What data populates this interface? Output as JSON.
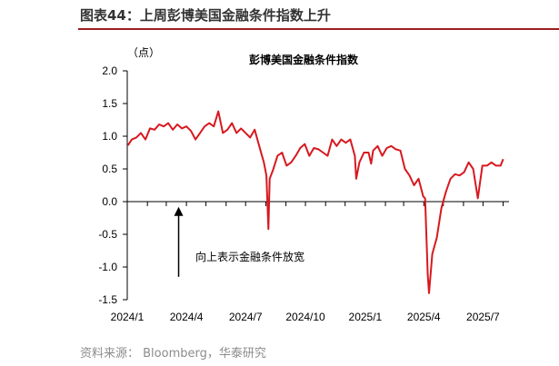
{
  "figure_label": "图表44：",
  "figure_title": "上周彭博美国金融条件指数上升",
  "source_note": "资料来源： Bloomberg，华泰研究",
  "colors": {
    "series": "#d7191f",
    "axis": "#000000",
    "title_rule": "#9b1c1f",
    "note": "#8c8c8c"
  },
  "chart_data": {
    "type": "line",
    "title": "彭博美国金融条件指数",
    "unit_label": "（点）",
    "ylim": [
      -1.5,
      2.0
    ],
    "yticks": [
      2.0,
      1.5,
      1.0,
      0.5,
      0.0,
      -0.5,
      -1.0,
      -1.5
    ],
    "ytick_labels": [
      "2.0",
      "1.5",
      "1.0",
      "0.5",
      "0.0",
      "-0.5",
      "-1.0",
      "-1.5"
    ],
    "xlim": [
      "2024-01-01",
      "2025-08-10"
    ],
    "xticks": [
      "2024-01-01",
      "2024-04-01",
      "2024-07-01",
      "2024-10-01",
      "2025-01-01",
      "2025-04-01",
      "2025-07-01"
    ],
    "xtick_labels": [
      "2024/1",
      "2024/4",
      "2024/7",
      "2024/10",
      "2025/1",
      "2025/4",
      "2025/7"
    ],
    "grid": false,
    "annotation": {
      "text": "向上表示金融条件放宽",
      "arrow": "up",
      "arrow_x": "2024-03-20",
      "arrow_y_from": -1.15,
      "arrow_y_to": -0.08
    },
    "series": [
      {
        "x": [
          "2024-01-02",
          "2024-01-08",
          "2024-01-15",
          "2024-01-22",
          "2024-01-29",
          "2024-02-05",
          "2024-02-12",
          "2024-02-19",
          "2024-02-26",
          "2024-03-04",
          "2024-03-11",
          "2024-03-18",
          "2024-03-25",
          "2024-04-01",
          "2024-04-08",
          "2024-04-15",
          "2024-04-22",
          "2024-04-29",
          "2024-05-06",
          "2024-05-13",
          "2024-05-20",
          "2024-05-27",
          "2024-06-03",
          "2024-06-10",
          "2024-06-17",
          "2024-06-24",
          "2024-07-01",
          "2024-07-08",
          "2024-07-15",
          "2024-07-22",
          "2024-07-29",
          "2024-08-02",
          "2024-08-05",
          "2024-08-07",
          "2024-08-12",
          "2024-08-19",
          "2024-08-26",
          "2024-09-02",
          "2024-09-09",
          "2024-09-16",
          "2024-09-23",
          "2024-09-30",
          "2024-10-07",
          "2024-10-14",
          "2024-10-21",
          "2024-10-28",
          "2024-11-04",
          "2024-11-11",
          "2024-11-18",
          "2024-11-25",
          "2024-12-02",
          "2024-12-09",
          "2024-12-16",
          "2024-12-18",
          "2024-12-23",
          "2024-12-30",
          "2025-01-06",
          "2025-01-10",
          "2025-01-13",
          "2025-01-20",
          "2025-01-27",
          "2025-02-03",
          "2025-02-10",
          "2025-02-17",
          "2025-02-24",
          "2025-03-03",
          "2025-03-10",
          "2025-03-17",
          "2025-03-24",
          "2025-03-31",
          "2025-04-03",
          "2025-04-07",
          "2025-04-09",
          "2025-04-14",
          "2025-04-21",
          "2025-04-28",
          "2025-05-05",
          "2025-05-12",
          "2025-05-19",
          "2025-05-26",
          "2025-06-02",
          "2025-06-09",
          "2025-06-16",
          "2025-06-23",
          "2025-06-30",
          "2025-07-07",
          "2025-07-14",
          "2025-07-21",
          "2025-07-28",
          "2025-08-01"
        ],
        "y": [
          0.86,
          0.95,
          0.98,
          1.05,
          0.95,
          1.12,
          1.1,
          1.18,
          1.15,
          1.2,
          1.1,
          1.18,
          1.12,
          1.15,
          1.08,
          0.95,
          1.05,
          1.15,
          1.2,
          1.15,
          1.38,
          1.05,
          1.1,
          1.2,
          1.05,
          1.12,
          1.05,
          0.98,
          1.1,
          0.85,
          0.6,
          0.4,
          -0.42,
          0.35,
          0.48,
          0.7,
          0.75,
          0.55,
          0.6,
          0.7,
          0.82,
          0.88,
          0.7,
          0.82,
          0.8,
          0.75,
          0.7,
          0.95,
          0.85,
          0.95,
          0.9,
          0.95,
          0.7,
          0.35,
          0.6,
          0.75,
          0.75,
          0.58,
          0.78,
          0.85,
          0.7,
          0.82,
          0.85,
          0.8,
          0.78,
          0.5,
          0.4,
          0.25,
          0.35,
          0.08,
          0.05,
          -1.12,
          -1.4,
          -0.8,
          -0.55,
          -0.1,
          0.15,
          0.35,
          0.42,
          0.4,
          0.45,
          0.6,
          0.5,
          0.05,
          0.55,
          0.55,
          0.6,
          0.55,
          0.55,
          0.65
        ]
      }
    ]
  }
}
